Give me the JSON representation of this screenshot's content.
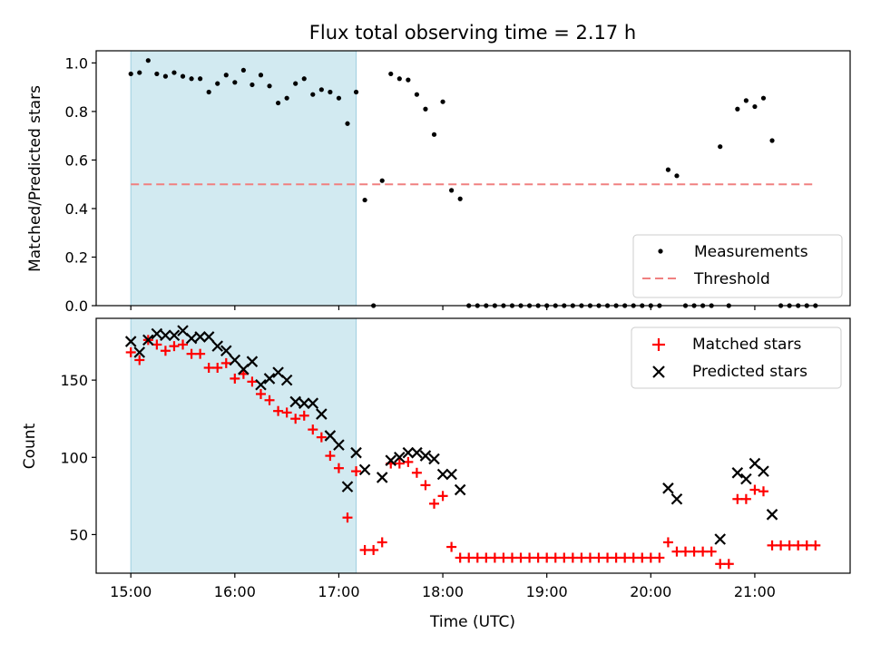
{
  "chart_data": [
    {
      "type": "scatter",
      "title": "Flux total observing time = 2.17 h",
      "ylabel": "Matched/Predicted stars",
      "xlabel": "",
      "xlim": [
        "14:40",
        "21:55"
      ],
      "ylim": [
        0.0,
        1.05
      ],
      "yticks": [
        "0.0",
        "0.2",
        "0.4",
        "0.6",
        "0.8",
        "1.0"
      ],
      "grid": false,
      "legend_position": "lower right",
      "shaded_region": {
        "from": "15:00",
        "to": "17:10",
        "color": "#add8e6"
      },
      "threshold": {
        "name": "Threshold",
        "value": 0.5,
        "from": "15:00",
        "to": "21:35",
        "color": "#f08080",
        "style": "dashed"
      },
      "series": [
        {
          "name": "Measurements",
          "marker": "dot",
          "color": "#000000",
          "points": [
            [
              "15:00",
              0.955
            ],
            [
              "15:05",
              0.96
            ],
            [
              "15:10",
              1.01
            ],
            [
              "15:15",
              0.955
            ],
            [
              "15:20",
              0.945
            ],
            [
              "15:25",
              0.96
            ],
            [
              "15:30",
              0.945
            ],
            [
              "15:35",
              0.935
            ],
            [
              "15:40",
              0.935
            ],
            [
              "15:45",
              0.88
            ],
            [
              "15:50",
              0.915
            ],
            [
              "15:55",
              0.95
            ],
            [
              "16:00",
              0.92
            ],
            [
              "16:05",
              0.97
            ],
            [
              "16:10",
              0.91
            ],
            [
              "16:15",
              0.95
            ],
            [
              "16:20",
              0.905
            ],
            [
              "16:25",
              0.835
            ],
            [
              "16:30",
              0.855
            ],
            [
              "16:35",
              0.915
            ],
            [
              "16:40",
              0.935
            ],
            [
              "16:45",
              0.87
            ],
            [
              "16:50",
              0.89
            ],
            [
              "16:55",
              0.88
            ],
            [
              "17:00",
              0.855
            ],
            [
              "17:05",
              0.75
            ],
            [
              "17:10",
              0.88
            ],
            [
              "17:15",
              0.435
            ],
            [
              "17:20",
              0.0
            ],
            [
              "17:25",
              0.515
            ],
            [
              "17:30",
              0.955
            ],
            [
              "17:35",
              0.935
            ],
            [
              "17:40",
              0.93
            ],
            [
              "17:45",
              0.87
            ],
            [
              "17:50",
              0.81
            ],
            [
              "17:55",
              0.705
            ],
            [
              "18:00",
              0.84
            ],
            [
              "18:05",
              0.475
            ],
            [
              "18:10",
              0.44
            ],
            [
              "18:15",
              0.0
            ],
            [
              "18:20",
              0.0
            ],
            [
              "18:25",
              0.0
            ],
            [
              "18:30",
              0.0
            ],
            [
              "18:35",
              0.0
            ],
            [
              "18:40",
              0.0
            ],
            [
              "18:45",
              0.0
            ],
            [
              "18:50",
              0.0
            ],
            [
              "18:55",
              0.0
            ],
            [
              "19:00",
              0.0
            ],
            [
              "19:05",
              0.0
            ],
            [
              "19:10",
              0.0
            ],
            [
              "19:15",
              0.0
            ],
            [
              "19:20",
              0.0
            ],
            [
              "19:25",
              0.0
            ],
            [
              "19:30",
              0.0
            ],
            [
              "19:35",
              0.0
            ],
            [
              "19:40",
              0.0
            ],
            [
              "19:45",
              0.0
            ],
            [
              "19:50",
              0.0
            ],
            [
              "19:55",
              0.0
            ],
            [
              "20:00",
              0.0
            ],
            [
              "20:05",
              0.0
            ],
            [
              "20:10",
              0.56
            ],
            [
              "20:15",
              0.535
            ],
            [
              "20:20",
              0.0
            ],
            [
              "20:25",
              0.0
            ],
            [
              "20:30",
              0.0
            ],
            [
              "20:35",
              0.0
            ],
            [
              "20:40",
              0.655
            ],
            [
              "20:45",
              0.0
            ],
            [
              "20:50",
              0.81
            ],
            [
              "20:55",
              0.845
            ],
            [
              "21:00",
              0.82
            ],
            [
              "21:05",
              0.855
            ],
            [
              "21:10",
              0.68
            ],
            [
              "21:15",
              0.0
            ],
            [
              "21:20",
              0.0
            ],
            [
              "21:25",
              0.0
            ],
            [
              "21:30",
              0.0
            ],
            [
              "21:35",
              0.0
            ]
          ]
        }
      ]
    },
    {
      "type": "scatter",
      "title": "",
      "ylabel": "Count",
      "xlabel": "Time (UTC)",
      "xlim": [
        "14:40",
        "21:55"
      ],
      "ylim": [
        25,
        190
      ],
      "xticks": [
        "15:00",
        "16:00",
        "17:00",
        "18:00",
        "19:00",
        "20:00",
        "21:00"
      ],
      "yticks": [
        "50",
        "100",
        "150"
      ],
      "grid": false,
      "legend_position": "upper right",
      "shaded_region": {
        "from": "15:00",
        "to": "17:10",
        "color": "#add8e6"
      },
      "series": [
        {
          "name": "Matched stars",
          "marker": "plus",
          "color": "#ff0000",
          "points": [
            [
              "15:00",
              168
            ],
            [
              "15:05",
              163
            ],
            [
              "15:10",
              176
            ],
            [
              "15:15",
              173
            ],
            [
              "15:20",
              169
            ],
            [
              "15:25",
              172
            ],
            [
              "15:30",
              173
            ],
            [
              "15:35",
              167
            ],
            [
              "15:40",
              167
            ],
            [
              "15:45",
              158
            ],
            [
              "15:50",
              158
            ],
            [
              "15:55",
              161
            ],
            [
              "16:00",
              151
            ],
            [
              "16:05",
              154
            ],
            [
              "16:10",
              149
            ],
            [
              "16:15",
              141
            ],
            [
              "16:20",
              137
            ],
            [
              "16:25",
              130
            ],
            [
              "16:30",
              129
            ],
            [
              "16:35",
              125
            ],
            [
              "16:40",
              127
            ],
            [
              "16:45",
              118
            ],
            [
              "16:50",
              113
            ],
            [
              "16:55",
              101
            ],
            [
              "17:00",
              93
            ],
            [
              "17:05",
              61
            ],
            [
              "17:10",
              91
            ],
            [
              "17:15",
              40
            ],
            [
              "17:20",
              40
            ],
            [
              "17:25",
              45
            ],
            [
              "17:30",
              96
            ],
            [
              "17:35",
              96
            ],
            [
              "17:40",
              97
            ],
            [
              "17:45",
              90
            ],
            [
              "17:50",
              82
            ],
            [
              "17:55",
              70
            ],
            [
              "18:00",
              75
            ],
            [
              "18:05",
              42
            ],
            [
              "18:10",
              35
            ],
            [
              "18:15",
              35
            ],
            [
              "18:20",
              35
            ],
            [
              "18:25",
              35
            ],
            [
              "18:30",
              35
            ],
            [
              "18:35",
              35
            ],
            [
              "18:40",
              35
            ],
            [
              "18:45",
              35
            ],
            [
              "18:50",
              35
            ],
            [
              "18:55",
              35
            ],
            [
              "19:00",
              35
            ],
            [
              "19:05",
              35
            ],
            [
              "19:10",
              35
            ],
            [
              "19:15",
              35
            ],
            [
              "19:20",
              35
            ],
            [
              "19:25",
              35
            ],
            [
              "19:30",
              35
            ],
            [
              "19:35",
              35
            ],
            [
              "19:40",
              35
            ],
            [
              "19:45",
              35
            ],
            [
              "19:50",
              35
            ],
            [
              "19:55",
              35
            ],
            [
              "20:00",
              35
            ],
            [
              "20:05",
              35
            ],
            [
              "20:10",
              45
            ],
            [
              "20:15",
              39
            ],
            [
              "20:20",
              39
            ],
            [
              "20:25",
              39
            ],
            [
              "20:30",
              39
            ],
            [
              "20:35",
              39
            ],
            [
              "20:40",
              31
            ],
            [
              "20:45",
              31
            ],
            [
              "20:50",
              73
            ],
            [
              "20:55",
              73
            ],
            [
              "21:00",
              79
            ],
            [
              "21:05",
              78
            ],
            [
              "21:10",
              43
            ],
            [
              "21:15",
              43
            ],
            [
              "21:20",
              43
            ],
            [
              "21:25",
              43
            ],
            [
              "21:30",
              43
            ],
            [
              "21:35",
              43
            ]
          ]
        },
        {
          "name": "Predicted stars",
          "marker": "x",
          "color": "#000000",
          "points": [
            [
              "15:00",
              175
            ],
            [
              "15:05",
              168
            ],
            [
              "15:10",
              176
            ],
            [
              "15:15",
              180
            ],
            [
              "15:20",
              179
            ],
            [
              "15:25",
              179
            ],
            [
              "15:30",
              182
            ],
            [
              "15:35",
              177
            ],
            [
              "15:40",
              178
            ],
            [
              "15:45",
              178
            ],
            [
              "15:50",
              172
            ],
            [
              "15:55",
              169
            ],
            [
              "16:00",
              163
            ],
            [
              "16:05",
              157
            ],
            [
              "16:10",
              162
            ],
            [
              "16:15",
              147
            ],
            [
              "16:20",
              151
            ],
            [
              "16:25",
              155
            ],
            [
              "16:30",
              150
            ],
            [
              "16:35",
              136
            ],
            [
              "16:40",
              135
            ],
            [
              "16:45",
              135
            ],
            [
              "16:50",
              128
            ],
            [
              "16:55",
              114
            ],
            [
              "17:00",
              108
            ],
            [
              "17:05",
              81
            ],
            [
              "17:10",
              103
            ],
            [
              "17:15",
              92
            ],
            [
              "17:25",
              87
            ],
            [
              "17:30",
              98
            ],
            [
              "17:35",
              100
            ],
            [
              "17:40",
              103
            ],
            [
              "17:45",
              103
            ],
            [
              "17:50",
              101
            ],
            [
              "17:55",
              99
            ],
            [
              "18:00",
              89
            ],
            [
              "18:05",
              89
            ],
            [
              "18:10",
              79
            ],
            [
              "20:10",
              80
            ],
            [
              "20:15",
              73
            ],
            [
              "20:40",
              47
            ],
            [
              "20:50",
              90
            ],
            [
              "20:55",
              86
            ],
            [
              "21:00",
              96
            ],
            [
              "21:05",
              91
            ],
            [
              "21:10",
              63
            ]
          ]
        }
      ]
    }
  ]
}
